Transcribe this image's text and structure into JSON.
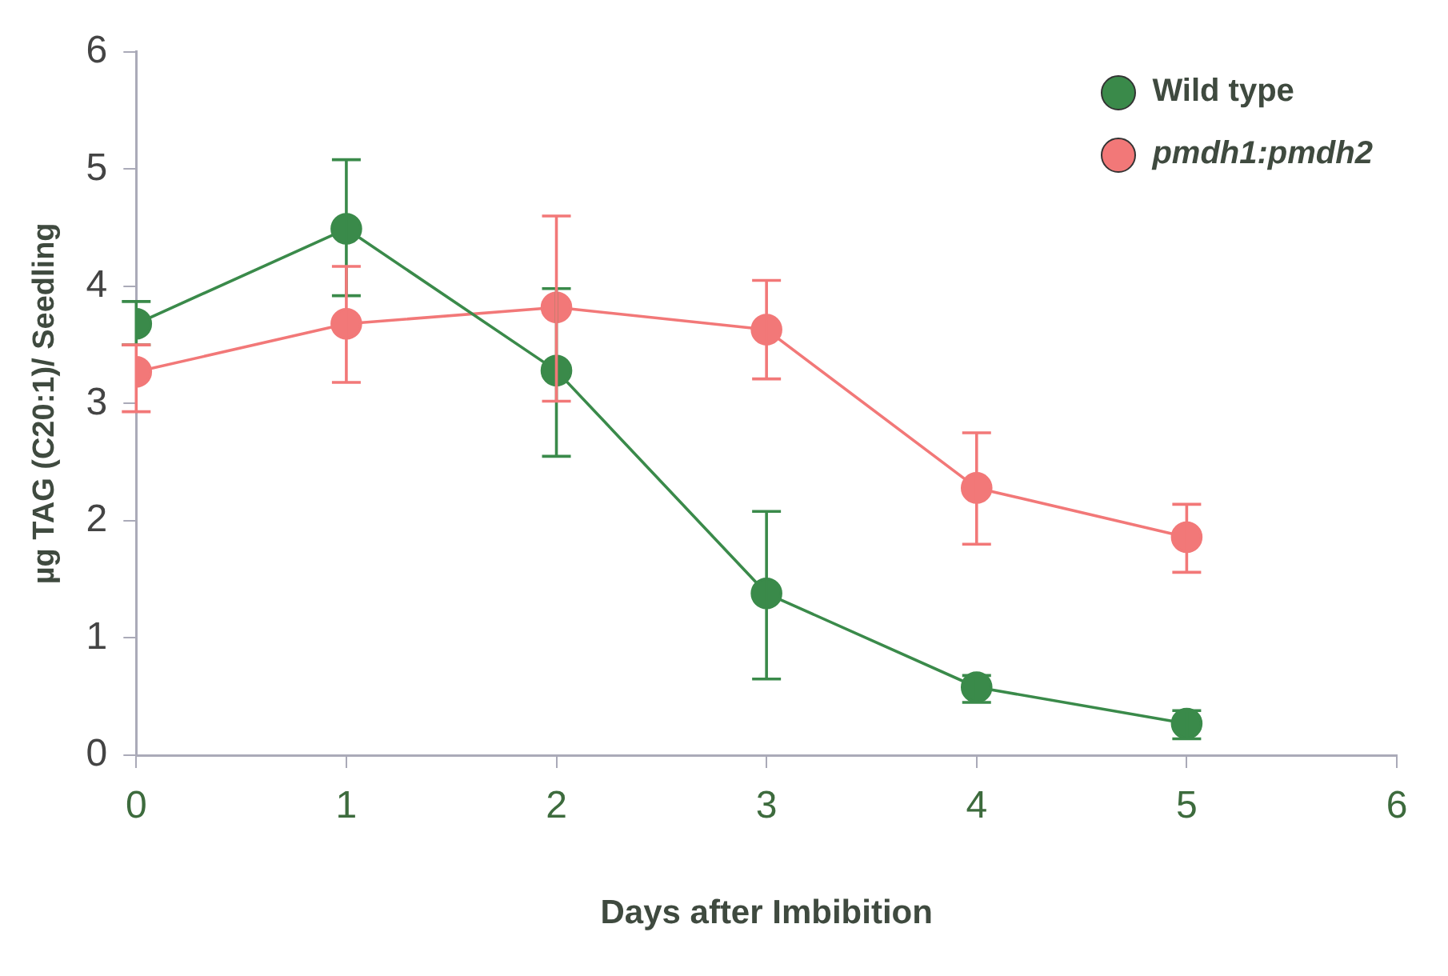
{
  "chart_data": {
    "type": "line",
    "xlabel": "Days after Imbibition",
    "ylabel": "µg TAG (C20:1)/ Seedling",
    "x": [
      0,
      1,
      2,
      3,
      4,
      5
    ],
    "series": [
      {
        "name": "Wild type",
        "color": "#3a8a4a",
        "values": [
          3.68,
          4.49,
          3.28,
          1.38,
          0.58,
          0.27
        ],
        "errors": [
          [
            3.5,
            3.87
          ],
          [
            3.92,
            5.08
          ],
          [
            2.55,
            3.98
          ],
          [
            0.65,
            2.08
          ],
          [
            0.45,
            0.68
          ],
          [
            0.14,
            0.38
          ]
        ]
      },
      {
        "name": "pmdh1:pmdh2",
        "color": "#f27878",
        "values": [
          3.27,
          3.68,
          3.82,
          3.63,
          2.28,
          1.86
        ],
        "errors": [
          [
            2.93,
            3.5
          ],
          [
            3.18,
            4.17
          ],
          [
            3.02,
            4.6
          ],
          [
            3.21,
            4.05
          ],
          [
            1.8,
            2.75
          ],
          [
            1.56,
            2.14
          ]
        ]
      }
    ],
    "xlim": [
      0,
      6
    ],
    "xticks": [
      0,
      1,
      2,
      3,
      4,
      5,
      6
    ],
    "ylim": [
      0,
      6
    ],
    "yticks": [
      0,
      1,
      2,
      3,
      4,
      5,
      6
    ],
    "grid": false,
    "legend": "top right",
    "marker": "circle",
    "line_style": "solid"
  }
}
